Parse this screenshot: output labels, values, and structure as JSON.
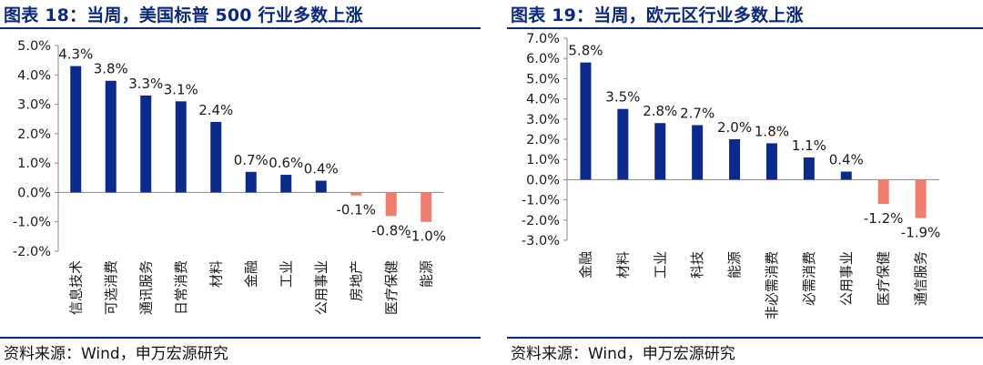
{
  "colors": {
    "positive": "#0b2a8c",
    "negative": "#f07e6e",
    "title": "#0b2a7a",
    "axis": "#888888"
  },
  "left": {
    "title": "图表 18：当周，美国标普 500 行业多数上涨",
    "source": "资料来源：Wind，申万宏源研究",
    "chart_data": {
      "type": "bar",
      "categories": [
        "信息技术",
        "可选消费",
        "通讯服务",
        "日常消费",
        "材料",
        "金融",
        "工业",
        "公用事业",
        "房地产",
        "医疗保健",
        "能源"
      ],
      "values": [
        4.3,
        3.8,
        3.3,
        3.1,
        2.4,
        0.7,
        0.6,
        0.4,
        -0.1,
        -0.8,
        -1.0
      ],
      "value_labels": [
        "4.3%",
        "3.8%",
        "3.3%",
        "3.1%",
        "2.4%",
        "0.7%",
        "0.6%",
        "0.4%",
        "-0.1%",
        "-0.8%",
        "-1.0%"
      ],
      "yticks": [
        "5.0%",
        "4.0%",
        "3.0%",
        "2.0%",
        "1.0%",
        "0.0%",
        "-1.0%",
        "-2.0%"
      ],
      "ylim": [
        -2,
        5
      ],
      "unit": "%"
    }
  },
  "right": {
    "title": "图表 19：当周，欧元区行业多数上涨",
    "source": "资料来源：Wind，申万宏源研究",
    "chart_data": {
      "type": "bar",
      "categories": [
        "金融",
        "材料",
        "工业",
        "科技",
        "能源",
        "非必需消费",
        "必需消费",
        "公用事业",
        "医疗保健",
        "通信服务"
      ],
      "values": [
        5.8,
        3.5,
        2.8,
        2.7,
        2.0,
        1.8,
        1.1,
        0.4,
        -1.2,
        -1.9
      ],
      "value_labels": [
        "5.8%",
        "3.5%",
        "2.8%",
        "2.7%",
        "2.0%",
        "1.8%",
        "1.1%",
        "0.4%",
        "-1.2%",
        "-1.9%"
      ],
      "yticks": [
        "7.0%",
        "6.0%",
        "5.0%",
        "4.0%",
        "3.0%",
        "2.0%",
        "1.0%",
        "0.0%",
        "-1.0%",
        "-2.0%",
        "-3.0%"
      ],
      "ylim": [
        -3,
        7
      ],
      "unit": "%"
    }
  }
}
